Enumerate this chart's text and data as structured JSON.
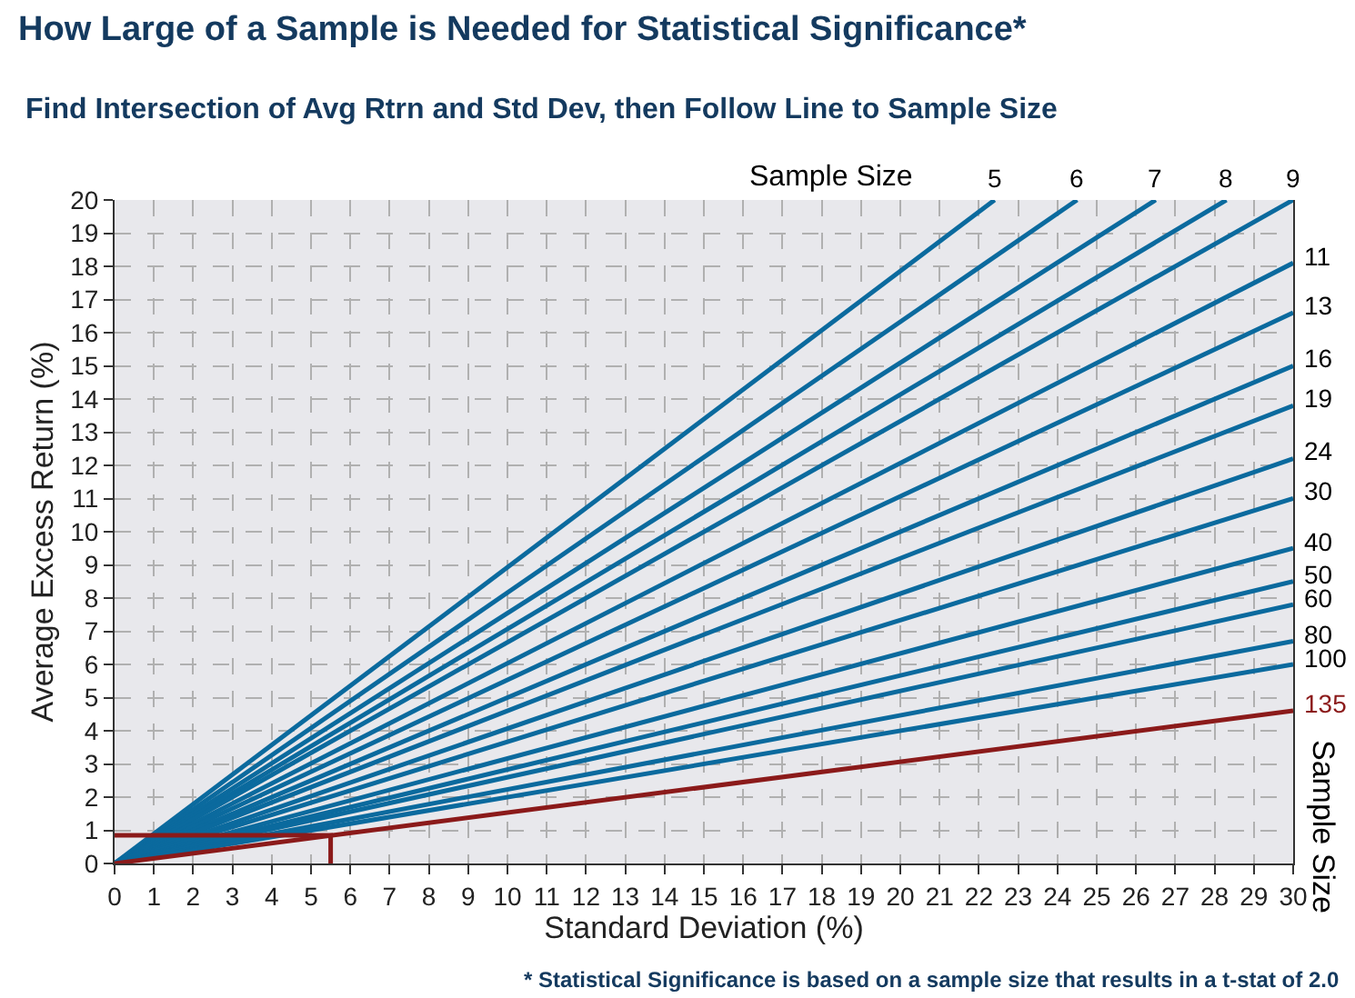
{
  "chart_data": {
    "type": "line",
    "title": "How Large of a Sample is Needed for Statistical Significance*",
    "subtitle": "Find Intersection of Avg Rtrn and Std Dev, then Follow Line to Sample Size",
    "xlabel": "Standard Deviation (%)",
    "ylabel": "Average Excess Return (%)",
    "annotations": [
      "Sample Size",
      "Sample Size",
      "* Statistical Significance is based on a sample size that results in a t-stat of 2.0"
    ],
    "series": [
      {
        "name": "5",
        "color": "#0b6a9e",
        "x": [
          0,
          22.4
        ],
        "values": [
          0,
          20
        ]
      },
      {
        "name": "6",
        "color": "#0b6a9e",
        "x": [
          0,
          24.5
        ],
        "values": [
          0,
          20
        ]
      },
      {
        "name": "7",
        "color": "#0b6a9e",
        "x": [
          0,
          26.5
        ],
        "values": [
          0,
          20
        ]
      },
      {
        "name": "8",
        "color": "#0b6a9e",
        "x": [
          0,
          28.3
        ],
        "values": [
          0,
          20
        ]
      },
      {
        "name": "9",
        "color": "#0b6a9e",
        "x": [
          0,
          30
        ],
        "values": [
          0,
          20
        ]
      },
      {
        "name": "11",
        "color": "#0b6a9e",
        "x": [
          0,
          30
        ],
        "values": [
          0,
          18.1
        ]
      },
      {
        "name": "13",
        "color": "#0b6a9e",
        "x": [
          0,
          30
        ],
        "values": [
          0,
          16.6
        ]
      },
      {
        "name": "16",
        "color": "#0b6a9e",
        "x": [
          0,
          30
        ],
        "values": [
          0,
          15.0
        ]
      },
      {
        "name": "19",
        "color": "#0b6a9e",
        "x": [
          0,
          30
        ],
        "values": [
          0,
          13.8
        ]
      },
      {
        "name": "24",
        "color": "#0b6a9e",
        "x": [
          0,
          30
        ],
        "values": [
          0,
          12.2
        ]
      },
      {
        "name": "30",
        "color": "#0b6a9e",
        "x": [
          0,
          30
        ],
        "values": [
          0,
          11.0
        ]
      },
      {
        "name": "40",
        "color": "#0b6a9e",
        "x": [
          0,
          30
        ],
        "values": [
          0,
          9.5
        ]
      },
      {
        "name": "50",
        "color": "#0b6a9e",
        "x": [
          0,
          30
        ],
        "values": [
          0,
          8.5
        ]
      },
      {
        "name": "60",
        "color": "#0b6a9e",
        "x": [
          0,
          30
        ],
        "values": [
          0,
          7.8
        ]
      },
      {
        "name": "80",
        "color": "#0b6a9e",
        "x": [
          0,
          30
        ],
        "values": [
          0,
          6.7
        ]
      },
      {
        "name": "100",
        "color": "#0b6a9e",
        "x": [
          0,
          30
        ],
        "values": [
          0,
          6.0
        ]
      },
      {
        "name": "135",
        "color": "#8b1a1a",
        "x": [
          0,
          30
        ],
        "values": [
          0,
          4.6
        ]
      },
      {
        "color": "#8b1a1a",
        "x": [
          0,
          5.5,
          5.5
        ],
        "values": [
          0.85,
          0.85,
          0
        ]
      }
    ],
    "xlim": [
      0,
      30
    ],
    "xticks": [
      0,
      1,
      2,
      3,
      4,
      5,
      6,
      7,
      8,
      9,
      10,
      11,
      12,
      13,
      14,
      15,
      16,
      17,
      18,
      19,
      20,
      21,
      22,
      23,
      24,
      25,
      26,
      27,
      28,
      29,
      30
    ],
    "ylim": [
      0,
      20
    ],
    "yticks": [
      0,
      1,
      2,
      3,
      4,
      5,
      6,
      7,
      8,
      9,
      10,
      11,
      12,
      13,
      14,
      15,
      16,
      17,
      18,
      19,
      20
    ],
    "grid": true,
    "marker": "none",
    "line_style": "solid"
  }
}
